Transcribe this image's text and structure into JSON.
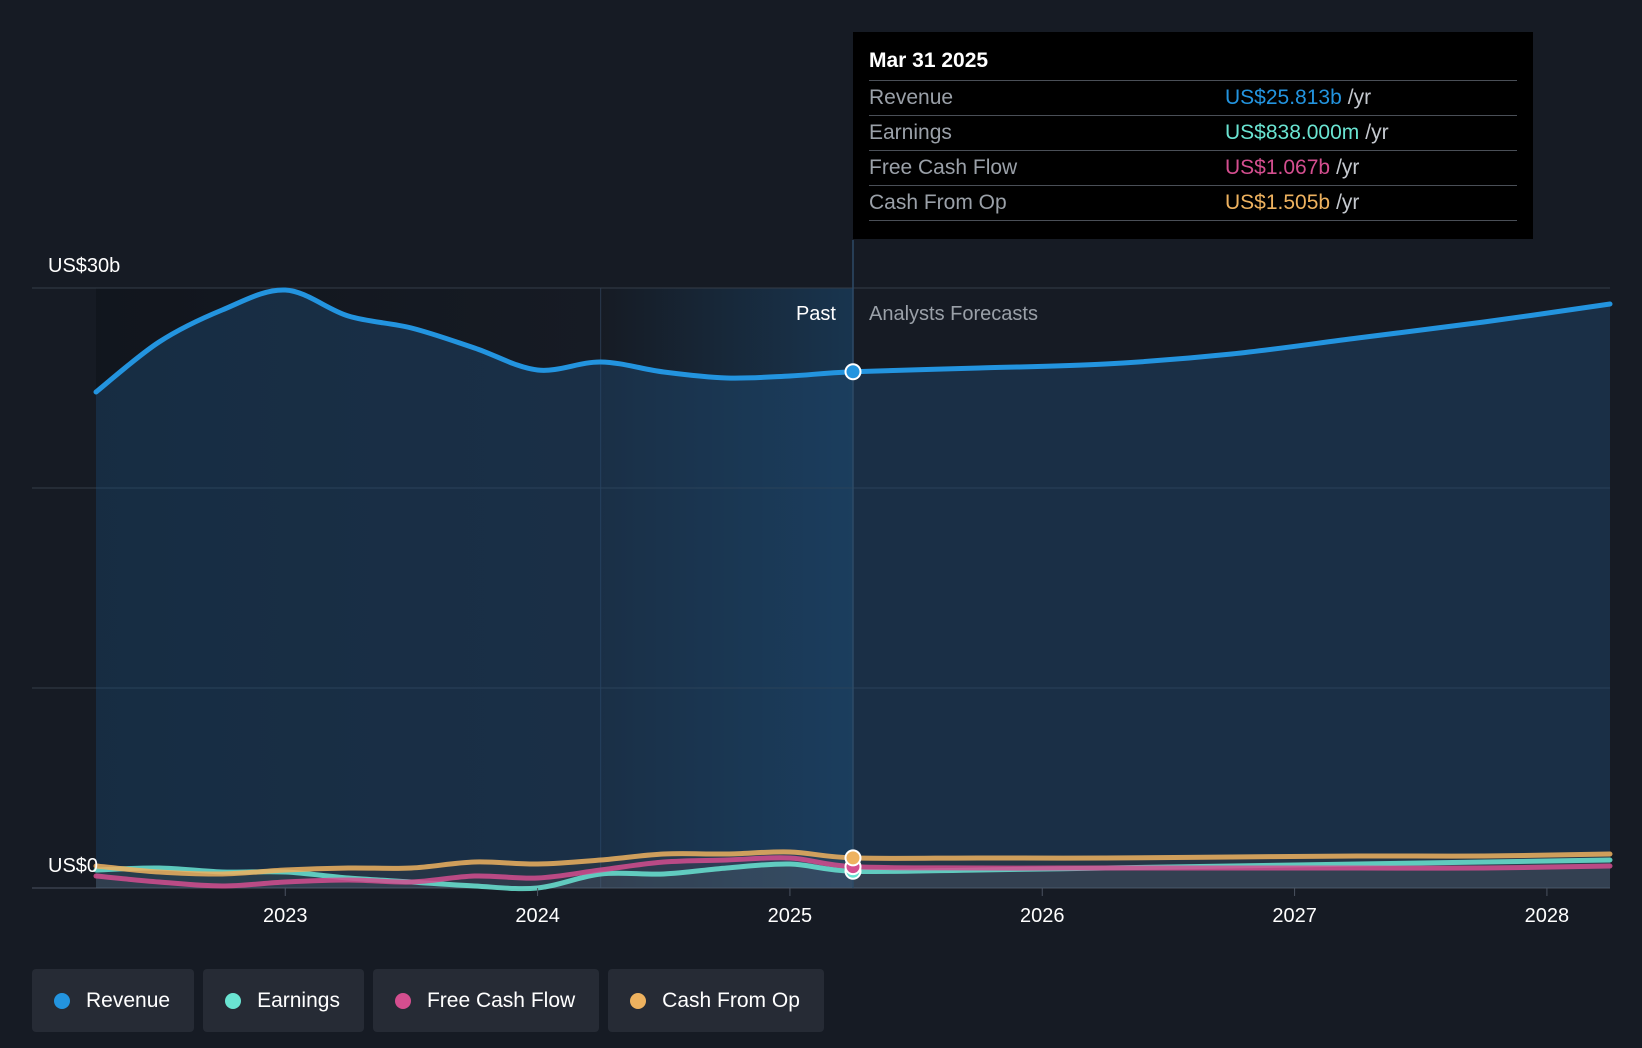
{
  "chart_data": {
    "type": "area",
    "y_axis": {
      "top_label": "US$30b",
      "bottom_label": "US$0",
      "ylim": [
        0,
        30
      ],
      "unit": "US$b"
    },
    "x_axis": {
      "ticks": [
        "2023",
        "2024",
        "2025",
        "2026",
        "2027",
        "2028"
      ],
      "range": [
        2022.25,
        2028.25
      ]
    },
    "sections": {
      "past_label": "Past",
      "forecast_label": "Analysts Forecasts",
      "divider_x": 2025.25
    },
    "series": [
      {
        "name": "Revenue",
        "color": "#2394df",
        "x": [
          2022.25,
          2022.5,
          2022.75,
          2023.0,
          2023.25,
          2023.5,
          2023.75,
          2024.0,
          2024.25,
          2024.5,
          2024.75,
          2025.0,
          2025.25,
          2025.75,
          2026.25,
          2026.75,
          2027.25,
          2027.75,
          2028.25
        ],
        "y": [
          24.8,
          27.3,
          28.9,
          29.9,
          28.6,
          28.0,
          27.0,
          25.9,
          26.3,
          25.8,
          25.5,
          25.6,
          25.813,
          26.0,
          26.2,
          26.7,
          27.5,
          28.3,
          29.2
        ]
      },
      {
        "name": "Earnings",
        "color": "#6ae4d2",
        "x": [
          2022.25,
          2022.5,
          2022.75,
          2023.0,
          2023.25,
          2023.5,
          2023.75,
          2024.0,
          2024.25,
          2024.5,
          2024.75,
          2025.0,
          2025.25,
          2025.75,
          2026.25,
          2026.75,
          2027.25,
          2027.75,
          2028.25
        ],
        "y": [
          0.9,
          1.0,
          0.8,
          0.8,
          0.5,
          0.3,
          0.1,
          0.0,
          0.7,
          0.7,
          1.0,
          1.2,
          0.838,
          0.9,
          1.0,
          1.1,
          1.2,
          1.3,
          1.4
        ]
      },
      {
        "name": "Free Cash Flow",
        "color": "#d44e8f",
        "x": [
          2022.25,
          2022.5,
          2022.75,
          2023.0,
          2023.25,
          2023.5,
          2023.75,
          2024.0,
          2024.25,
          2024.5,
          2024.75,
          2025.0,
          2025.25,
          2025.75,
          2026.25,
          2026.75,
          2027.25,
          2027.75,
          2028.25
        ],
        "y": [
          0.6,
          0.3,
          0.1,
          0.3,
          0.4,
          0.3,
          0.6,
          0.5,
          0.9,
          1.3,
          1.4,
          1.5,
          1.067,
          1.0,
          1.0,
          1.0,
          1.0,
          1.0,
          1.1
        ]
      },
      {
        "name": "Cash From Op",
        "color": "#eeb25f",
        "x": [
          2022.25,
          2022.5,
          2022.75,
          2023.0,
          2023.25,
          2023.5,
          2023.75,
          2024.0,
          2024.25,
          2024.5,
          2024.75,
          2025.0,
          2025.25,
          2025.75,
          2026.25,
          2026.75,
          2027.25,
          2027.75,
          2028.25
        ],
        "y": [
          1.1,
          0.8,
          0.7,
          0.9,
          1.0,
          1.0,
          1.3,
          1.2,
          1.4,
          1.7,
          1.7,
          1.8,
          1.505,
          1.5,
          1.5,
          1.55,
          1.6,
          1.6,
          1.7
        ]
      }
    ]
  },
  "tooltip": {
    "date": "Mar 31 2025",
    "rows": [
      {
        "label": "Revenue",
        "value": "US$25.813b",
        "unit": "/yr",
        "color": "#2394df"
      },
      {
        "label": "Earnings",
        "value": "US$838.000m",
        "unit": "/yr",
        "color": "#6ae4d2"
      },
      {
        "label": "Free Cash Flow",
        "value": "US$1.067b",
        "unit": "/yr",
        "color": "#d44e8f"
      },
      {
        "label": "Cash From Op",
        "value": "US$1.505b",
        "unit": "/yr",
        "color": "#eeb25f"
      }
    ]
  },
  "legend": [
    {
      "label": "Revenue",
      "color": "#2394df"
    },
    {
      "label": "Earnings",
      "color": "#6ae4d2"
    },
    {
      "label": "Free Cash Flow",
      "color": "#d44e8f"
    },
    {
      "label": "Cash From Op",
      "color": "#eeb25f"
    }
  ]
}
